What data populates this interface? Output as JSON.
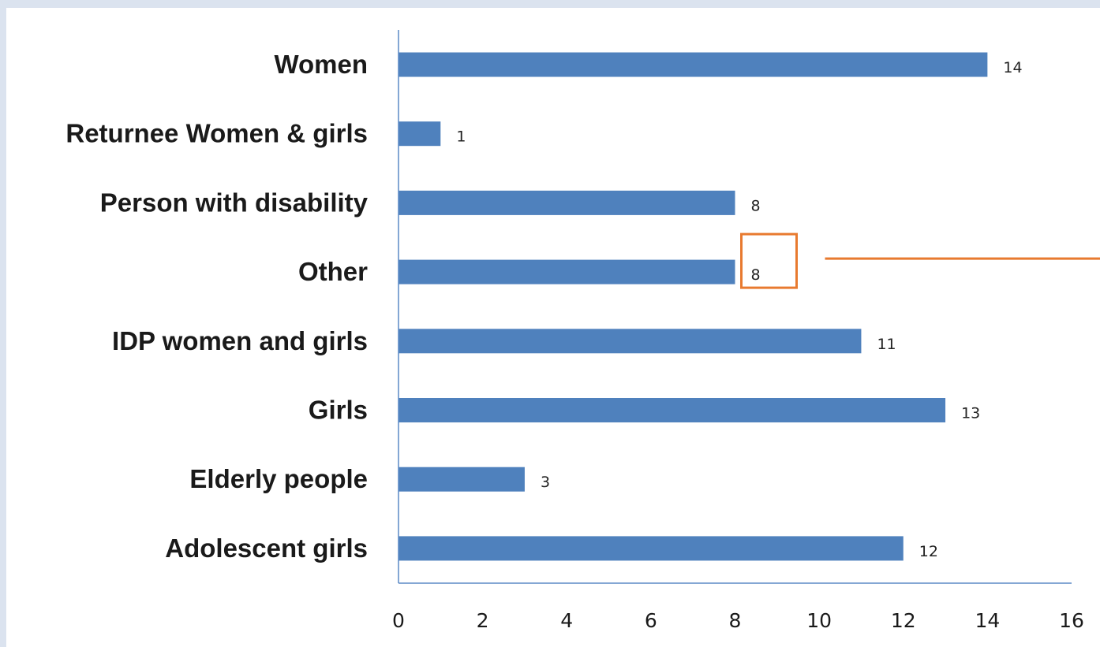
{
  "chart_data": {
    "type": "bar",
    "orientation": "horizontal",
    "categories": [
      "Women",
      "Returnee Women & girls",
      "Person with disability",
      "Other",
      "IDP women and girls",
      "Girls",
      "Elderly people",
      "Adolescent girls"
    ],
    "values": [
      14,
      1,
      8,
      8,
      11,
      13,
      3,
      12
    ],
    "xlim": [
      0,
      16
    ],
    "xticks": [
      0,
      2,
      4,
      6,
      8,
      10,
      12,
      14,
      16
    ],
    "grid": false,
    "legend": "none",
    "data_labels": true,
    "highlight": {
      "category": "Other",
      "style": "boxed value label with pointer line"
    }
  },
  "colors": {
    "bar": "#4f81bd",
    "axis": "#5b8ac6",
    "highlight": "#e87a2f",
    "background": "#ffffff",
    "page_border": "#dbe3ef"
  }
}
